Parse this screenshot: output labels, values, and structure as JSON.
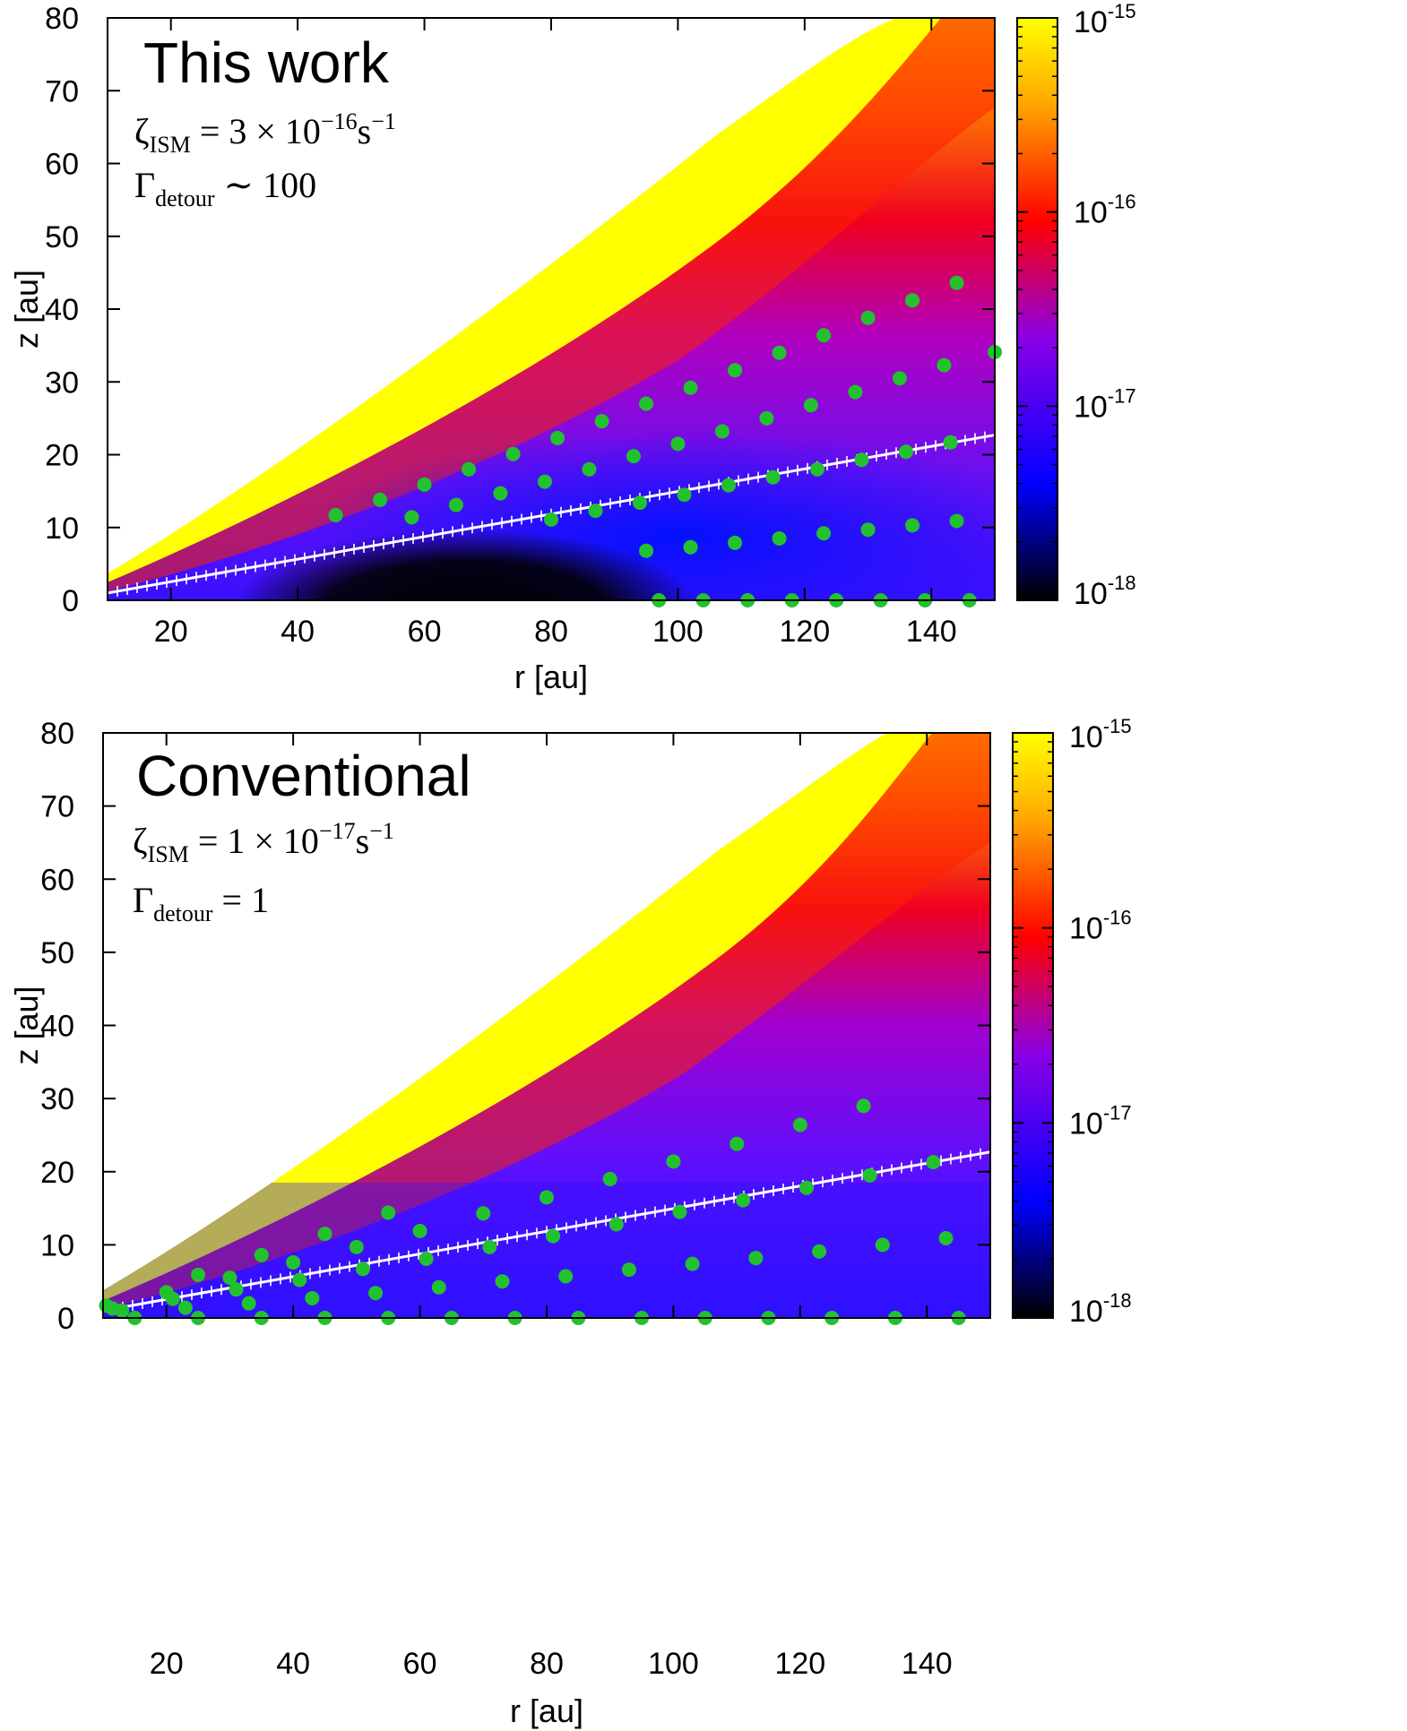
{
  "colors": {
    "marker": "#22c22e",
    "snowline": "#ffffff",
    "colormap": [
      "#000000",
      "#0000ff",
      "#8a00e6",
      "#ff0000",
      "#ffa500",
      "#ffff00"
    ]
  },
  "colorbar": {
    "ticks": [
      {
        "base": "10",
        "exp": "-15"
      },
      {
        "base": "10",
        "exp": "-16"
      },
      {
        "base": "10",
        "exp": "-17"
      },
      {
        "base": "10",
        "exp": "-18"
      }
    ]
  },
  "chart_data": [
    {
      "type": "heatmap",
      "title": "This work",
      "xlabel": "r [au]",
      "ylabel": "z [au]",
      "xlim": [
        10,
        150
      ],
      "ylim": [
        0,
        80
      ],
      "xticks": [
        "20",
        "40",
        "60",
        "80",
        "100",
        "120",
        "140"
      ],
      "yticks": [
        "0",
        "10",
        "20",
        "30",
        "40",
        "50",
        "60",
        "70",
        "80"
      ],
      "colorbar_range": [
        "1e-18",
        "1e-15"
      ],
      "annotation": {
        "zeta_symbol": "ζ",
        "zeta_sub": "ISM",
        "zeta_eq": " = 3 × 10",
        "zeta_exp": "−16",
        "zeta_unit": "s",
        "zeta_unit_exp": "−1",
        "gamma_symbol": "Γ",
        "gamma_sub": "detour",
        "gamma_rel": " ∼ 100"
      },
      "snowline": [
        [
          10,
          1
        ],
        [
          150,
          22.7
        ]
      ],
      "points": [
        [
          46,
          11.7
        ],
        [
          53,
          13.8
        ],
        [
          58,
          11.4
        ],
        [
          60,
          15.9
        ],
        [
          65,
          13.1
        ],
        [
          67,
          18.0
        ],
        [
          72,
          14.7
        ],
        [
          74,
          20.1
        ],
        [
          79,
          16.3
        ],
        [
          80,
          11.1
        ],
        [
          81,
          22.3
        ],
        [
          86,
          18.0
        ],
        [
          87,
          12.3
        ],
        [
          88,
          24.6
        ],
        [
          93,
          19.8
        ],
        [
          94,
          13.4
        ],
        [
          95,
          27.0
        ],
        [
          95,
          6.8
        ],
        [
          97,
          0
        ],
        [
          100,
          21.5
        ],
        [
          101,
          14.5
        ],
        [
          102,
          29.2
        ],
        [
          102,
          7.3
        ],
        [
          104,
          0
        ],
        [
          107,
          23.2
        ],
        [
          108,
          15.8
        ],
        [
          109,
          31.6
        ],
        [
          109,
          7.9
        ],
        [
          111,
          0
        ],
        [
          114,
          25.0
        ],
        [
          115,
          16.9
        ],
        [
          116,
          34.0
        ],
        [
          116,
          8.5
        ],
        [
          118,
          0
        ],
        [
          121,
          26.8
        ],
        [
          122,
          18.0
        ],
        [
          123,
          36.4
        ],
        [
          123,
          9.2
        ],
        [
          125,
          0
        ],
        [
          128,
          28.6
        ],
        [
          129,
          19.3
        ],
        [
          130,
          38.8
        ],
        [
          130,
          9.7
        ],
        [
          132,
          0
        ],
        [
          135,
          30.5
        ],
        [
          136,
          20.4
        ],
        [
          137,
          41.2
        ],
        [
          137,
          10.3
        ],
        [
          139,
          0
        ],
        [
          142,
          32.3
        ],
        [
          143,
          21.7
        ],
        [
          144,
          43.6
        ],
        [
          144,
          10.9
        ],
        [
          146,
          0
        ],
        [
          150,
          34.1
        ]
      ]
    },
    {
      "type": "heatmap",
      "title": "Conventional",
      "xlabel": "r [au]",
      "ylabel": "z [au]",
      "xlim": [
        10,
        150
      ],
      "ylim": [
        0,
        80
      ],
      "xticks": [
        "20",
        "40",
        "60",
        "80",
        "100",
        "120",
        "140"
      ],
      "yticks": [
        "0",
        "10",
        "20",
        "30",
        "40",
        "50",
        "60",
        "70",
        "80"
      ],
      "colorbar_range": [
        "1e-18",
        "1e-15"
      ],
      "annotation": {
        "zeta_symbol": "ζ",
        "zeta_sub": "ISM",
        "zeta_eq": " = 1 × 10",
        "zeta_exp": "−17",
        "zeta_unit": "s",
        "zeta_unit_exp": "−1",
        "gamma_symbol": "Γ",
        "gamma_sub": "detour",
        "gamma_rel": " = 1"
      },
      "snowline": [
        [
          10,
          1
        ],
        [
          150,
          22.7
        ]
      ],
      "points": [
        [
          10.5,
          1.7
        ],
        [
          11.5,
          1.3
        ],
        [
          13,
          1.0
        ],
        [
          15,
          0
        ],
        [
          20,
          3.5
        ],
        [
          21,
          2.6
        ],
        [
          23,
          1.4
        ],
        [
          25,
          5.9
        ],
        [
          25,
          0
        ],
        [
          30,
          5.5
        ],
        [
          31,
          3.9
        ],
        [
          33,
          2.0
        ],
        [
          35,
          8.6
        ],
        [
          35,
          0
        ],
        [
          40,
          7.6
        ],
        [
          41,
          5.2
        ],
        [
          43,
          2.7
        ],
        [
          45,
          11.5
        ],
        [
          45,
          0
        ],
        [
          50,
          9.7
        ],
        [
          51,
          6.7
        ],
        [
          53,
          3.4
        ],
        [
          55,
          14.4
        ],
        [
          55,
          0
        ],
        [
          60,
          11.9
        ],
        [
          61,
          8.1
        ],
        [
          63,
          4.2
        ],
        [
          65,
          0
        ],
        [
          70,
          14.3
        ],
        [
          71,
          9.7
        ],
        [
          73,
          5.0
        ],
        [
          75,
          0
        ],
        [
          80,
          16.5
        ],
        [
          81,
          11.2
        ],
        [
          83,
          5.7
        ],
        [
          85,
          0
        ],
        [
          90,
          19.0
        ],
        [
          91,
          12.8
        ],
        [
          93,
          6.6
        ],
        [
          95,
          0
        ],
        [
          100,
          21.4
        ],
        [
          101,
          14.5
        ],
        [
          103,
          7.4
        ],
        [
          105,
          0
        ],
        [
          110,
          23.8
        ],
        [
          111,
          16.1
        ],
        [
          113,
          8.2
        ],
        [
          115,
          0
        ],
        [
          120,
          26.4
        ],
        [
          121,
          17.8
        ],
        [
          123,
          9.1
        ],
        [
          125,
          0
        ],
        [
          130,
          29.0
        ],
        [
          131,
          19.5
        ],
        [
          133,
          10.0
        ],
        [
          135,
          0
        ],
        [
          141,
          21.3
        ],
        [
          143,
          10.9
        ],
        [
          145,
          0
        ]
      ]
    }
  ]
}
